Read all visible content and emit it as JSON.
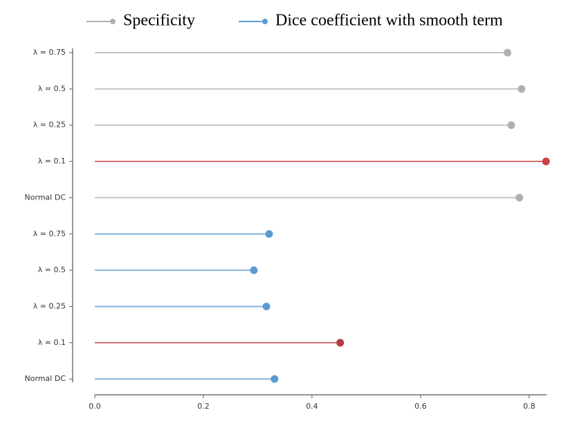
{
  "chart_data": {
    "type": "lollipop",
    "series": [
      {
        "name": "Specificity",
        "color": "#b0b0b0",
        "categories": [
          "λ = 0.75",
          "λ = 0.5",
          "λ = 0.25",
          "λ = 0.1",
          "Normal DC"
        ],
        "values": [
          0.76,
          0.786,
          0.767,
          0.831,
          0.782
        ],
        "colors": [
          "#b0b0b0",
          "#b0b0b0",
          "#b0b0b0",
          "#c94040",
          "#b0b0b0"
        ]
      },
      {
        "name": "Dice coefficient with smooth term",
        "color": "#5b9bd5",
        "categories": [
          "λ = 0.75",
          "λ = 0.5",
          "λ = 0.25",
          "λ = 0.1",
          "Normal DC"
        ],
        "values": [
          0.321,
          0.293,
          0.316,
          0.452,
          0.331
        ],
        "colors": [
          "#5b9bd5",
          "#5b9bd5",
          "#5b9bd5",
          "#b83b45",
          "#5b9bd5"
        ]
      }
    ],
    "xlim": [
      0,
      0.832
    ],
    "xticks": [
      {
        "value": 0,
        "label": "0.0"
      },
      0.2,
      0.4,
      0.6,
      0.8
    ]
  }
}
